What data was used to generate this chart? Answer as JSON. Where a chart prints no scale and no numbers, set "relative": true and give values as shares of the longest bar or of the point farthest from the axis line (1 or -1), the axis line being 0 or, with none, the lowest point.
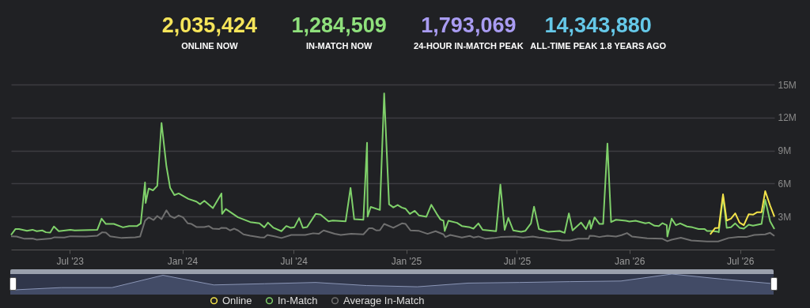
{
  "chart_data": [
    {
      "type": "other",
      "categories": [
        "ONLINE NOW",
        "IN-MATCH NOW",
        "24-HOUR IN-MATCH PEAK",
        "ALL-TIME PEAK 1.8 YEARS AGO"
      ],
      "values": [
        2035424,
        1284509,
        1793069,
        14343880
      ],
      "value_labels": [
        "2,035,424",
        "1,284,509",
        "1,793,069",
        "14,343,880"
      ],
      "colors": [
        "#f6e55a",
        "#8fe07c",
        "#a99cf2",
        "#65c8e8"
      ]
    },
    {
      "type": "line",
      "xlim": [
        "2023-03-27",
        "2026-08-26"
      ],
      "xticks": [
        {
          "value": "2023-07-01",
          "label": "Jul '23"
        },
        {
          "value": "2024-01-01",
          "label": "Jan '24"
        },
        {
          "value": "2024-07-01",
          "label": "Jul '24"
        },
        {
          "value": "2025-01-01",
          "label": "Jan '25"
        },
        {
          "value": "2025-07-01",
          "label": "Jul '25"
        },
        {
          "value": "2026-01-01",
          "label": "Jan '26"
        },
        {
          "value": "2026-07-01",
          "label": "Jul '26"
        }
      ],
      "ylim": [
        0,
        15000000
      ],
      "yticks": [
        {
          "value": 3000000,
          "label": "3M"
        },
        {
          "value": 6000000,
          "label": "6M"
        },
        {
          "value": 9000000,
          "label": "9M"
        },
        {
          "value": 12000000,
          "label": "12M"
        },
        {
          "value": 15000000,
          "label": "15M"
        }
      ],
      "grid": "y",
      "legend": "bottom",
      "series": [
        {
          "name": "Online",
          "color": "#f3e34a",
          "x": [
            "2026-05-13",
            "2026-05-21",
            "2026-05-27",
            "2026-06-03",
            "2026-06-09",
            "2026-06-16",
            "2026-06-23",
            "2026-06-30",
            "2026-07-07",
            "2026-07-15",
            "2026-07-22",
            "2026-07-29",
            "2026-08-05",
            "2026-08-11",
            "2026-08-19",
            "2026-08-26"
          ],
          "values": [
            1380000,
            1950000,
            1980000,
            5020000,
            2640000,
            2810000,
            3290000,
            2450000,
            2210000,
            3210000,
            3170000,
            3400000,
            3400000,
            5310000,
            4000000,
            2980000
          ]
        },
        {
          "name": "In-Match",
          "color": "#7fd06a",
          "x": [
            "2023-03-27",
            "2023-04-03",
            "2023-04-09",
            "2023-04-22",
            "2023-05-01",
            "2023-05-08",
            "2023-05-17",
            "2023-05-23",
            "2023-05-30",
            "2023-06-05",
            "2023-06-13",
            "2023-07-02",
            "2023-07-09",
            "2023-08-15",
            "2023-08-22",
            "2023-08-29",
            "2023-09-11",
            "2023-09-26",
            "2023-10-06",
            "2023-10-19",
            "2023-10-25",
            "2023-11-01",
            "2023-11-02",
            "2023-11-07",
            "2023-11-14",
            "2023-11-21",
            "2023-11-28",
            "2023-12-06",
            "2023-12-12",
            "2023-12-19",
            "2023-12-26",
            "2024-01-11",
            "2024-01-24",
            "2024-01-30",
            "2024-02-06",
            "2024-02-20",
            "2024-03-05",
            "2024-03-06",
            "2024-03-12",
            "2024-04-01",
            "2024-04-21",
            "2024-05-06",
            "2024-05-14",
            "2024-05-20",
            "2024-05-29",
            "2024-06-11",
            "2024-06-19",
            "2024-06-26",
            "2024-07-02",
            "2024-07-10",
            "2024-07-16",
            "2024-07-23",
            "2024-08-06",
            "2024-08-14",
            "2024-08-27",
            "2024-09-03",
            "2024-09-24",
            "2024-10-02",
            "2024-10-08",
            "2024-10-23",
            "2024-10-29",
            "2024-10-30",
            "2024-11-04",
            "2024-11-19",
            "2024-11-26",
            "2024-12-04",
            "2024-12-11",
            "2024-12-18",
            "2024-12-25",
            "2024-12-31",
            "2025-01-07",
            "2025-01-15",
            "2025-01-22",
            "2025-02-03",
            "2025-02-11",
            "2025-02-20",
            "2025-02-26",
            "2025-03-03",
            "2025-03-05",
            "2025-03-11",
            "2025-03-25",
            "2025-04-02",
            "2025-04-15",
            "2025-04-21",
            "2025-04-29",
            "2025-05-06",
            "2025-05-28",
            "2025-06-04",
            "2025-06-11",
            "2025-06-17",
            "2025-06-25",
            "2025-07-08",
            "2025-07-15",
            "2025-07-24",
            "2025-07-29",
            "2025-08-06",
            "2025-08-21",
            "2025-09-09",
            "2025-09-17",
            "2025-09-24",
            "2025-09-30",
            "2025-10-14",
            "2025-10-22",
            "2025-10-28",
            "2025-10-30",
            "2025-11-05",
            "2025-11-13",
            "2025-11-19",
            "2025-11-26",
            "2025-12-02",
            "2025-12-10",
            "2025-12-26",
            "2026-01-01",
            "2026-01-11",
            "2026-01-27",
            "2026-02-02",
            "2026-02-11",
            "2026-02-18",
            "2026-02-24",
            "2026-03-03",
            "2026-03-04",
            "2026-03-11",
            "2026-03-18",
            "2026-03-25",
            "2026-04-05",
            "2026-04-14",
            "2026-04-24",
            "2026-05-04",
            "2026-05-08",
            "2026-05-17",
            "2026-05-26",
            "2026-05-27",
            "2026-06-03",
            "2026-06-09",
            "2026-06-16",
            "2026-06-23",
            "2026-06-30",
            "2026-07-07",
            "2026-07-15",
            "2026-07-22",
            "2026-08-05",
            "2026-08-11",
            "2026-08-19",
            "2026-08-26"
          ],
          "values": [
            1330000,
            1860000,
            1860000,
            1710000,
            1800000,
            1670000,
            1740000,
            1570000,
            1550000,
            2100000,
            1670000,
            1800000,
            1740000,
            1800000,
            2810000,
            2330000,
            2330000,
            2020000,
            2140000,
            2140000,
            2380000,
            6100000,
            4240000,
            5550000,
            5380000,
            5790000,
            11500000,
            7570000,
            5620000,
            4950000,
            5100000,
            4600000,
            4360000,
            4120000,
            4430000,
            3760000,
            5100000,
            3240000,
            3690000,
            2930000,
            2500000,
            2380000,
            2020000,
            2450000,
            1980000,
            1670000,
            2140000,
            1980000,
            2020000,
            2860000,
            1980000,
            2050000,
            3240000,
            3170000,
            2570000,
            2640000,
            2570000,
            5600000,
            2760000,
            2710000,
            9710000,
            3000000,
            3880000,
            3600000,
            14190000,
            4120000,
            3830000,
            4050000,
            3810000,
            3710000,
            3240000,
            3520000,
            3100000,
            2980000,
            4070000,
            3240000,
            2740000,
            2620000,
            1690000,
            2620000,
            2430000,
            2140000,
            2020000,
            1900000,
            2380000,
            1790000,
            1670000,
            5900000,
            1790000,
            2880000,
            1740000,
            1620000,
            1710000,
            2380000,
            3900000,
            1860000,
            1620000,
            1690000,
            1520000,
            3290000,
            1740000,
            2450000,
            1860000,
            2640000,
            1900000,
            2930000,
            2330000,
            2330000,
            9640000,
            2500000,
            2710000,
            2620000,
            2550000,
            2620000,
            2380000,
            2450000,
            2170000,
            2140000,
            2400000,
            2210000,
            1190000,
            2810000,
            2210000,
            2380000,
            2100000,
            2020000,
            1860000,
            1860000,
            1690000,
            1690000,
            1620000,
            1570000,
            4830000,
            1980000,
            2020000,
            2380000,
            1980000,
            1900000,
            2260000,
            2170000,
            2330000,
            4520000,
            2570000,
            1860000
          ]
        },
        {
          "name": "Average In-Match",
          "color": "#6f6f6f",
          "x": [
            "2023-03-27",
            "2023-04-05",
            "2023-04-18",
            "2023-05-01",
            "2023-05-08",
            "2023-05-31",
            "2023-06-06",
            "2023-06-22",
            "2023-07-02",
            "2023-07-27",
            "2023-08-15",
            "2023-08-23",
            "2023-08-29",
            "2023-09-05",
            "2023-09-24",
            "2023-10-16",
            "2023-10-24",
            "2023-11-01",
            "2023-11-07",
            "2023-11-15",
            "2023-11-21",
            "2023-11-28",
            "2023-12-06",
            "2023-12-12",
            "2023-12-19",
            "2023-12-26",
            "2024-01-02",
            "2024-01-10",
            "2024-01-16",
            "2024-01-24",
            "2024-02-06",
            "2024-02-13",
            "2024-02-20",
            "2024-03-01",
            "2024-03-05",
            "2024-03-13",
            "2024-03-19",
            "2024-03-26",
            "2024-04-01",
            "2024-04-10",
            "2024-04-21",
            "2024-05-07",
            "2024-05-14",
            "2024-05-19",
            "2024-06-01",
            "2024-06-11",
            "2024-06-27",
            "2024-07-20",
            "2024-08-02",
            "2024-08-11",
            "2024-08-19",
            "2024-09-06",
            "2024-09-16",
            "2024-10-03",
            "2024-10-23",
            "2024-11-01",
            "2024-11-07",
            "2024-11-13",
            "2024-11-19",
            "2024-11-26",
            "2024-12-11",
            "2024-12-25",
            "2024-12-31",
            "2025-01-08",
            "2025-01-21",
            "2025-02-05",
            "2025-02-18",
            "2025-03-03",
            "2025-03-06",
            "2025-03-14",
            "2025-04-02",
            "2025-04-15",
            "2025-04-21",
            "2025-04-29",
            "2025-05-11",
            "2025-05-24",
            "2025-06-04",
            "2025-06-28",
            "2025-07-11",
            "2025-07-27",
            "2025-08-06",
            "2025-08-22",
            "2025-09-13",
            "2025-09-26",
            "2025-10-09",
            "2025-10-26",
            "2025-10-28",
            "2025-11-04",
            "2025-11-13",
            "2025-11-26",
            "2025-12-10",
            "2025-12-19",
            "2025-12-28",
            "2026-01-05",
            "2026-01-30",
            "2026-02-24",
            "2026-03-04",
            "2026-03-11",
            "2026-03-26",
            "2026-04-12",
            "2026-05-08",
            "2026-05-26",
            "2026-06-12",
            "2026-06-28",
            "2026-07-11",
            "2026-07-24",
            "2026-08-11",
            "2026-08-19",
            "2026-08-26"
          ],
          "values": [
            1210000,
            1190000,
            980000,
            1000000,
            900000,
            1000000,
            1120000,
            1100000,
            1210000,
            1190000,
            1260000,
            1570000,
            1550000,
            1210000,
            1050000,
            1120000,
            1190000,
            2620000,
            2930000,
            2690000,
            3050000,
            2760000,
            3570000,
            3050000,
            2860000,
            3100000,
            2930000,
            2380000,
            2330000,
            2050000,
            2050000,
            2140000,
            1900000,
            1860000,
            1980000,
            1950000,
            1740000,
            1900000,
            1740000,
            1380000,
            1260000,
            1120000,
            1100000,
            1330000,
            1190000,
            1050000,
            1330000,
            1330000,
            1480000,
            1430000,
            1740000,
            1430000,
            1330000,
            1430000,
            1380000,
            1930000,
            1930000,
            1740000,
            1760000,
            2330000,
            1980000,
            2380000,
            2330000,
            1740000,
            1710000,
            1430000,
            1670000,
            1380000,
            1140000,
            1330000,
            1100000,
            1240000,
            1100000,
            1190000,
            980000,
            1050000,
            1140000,
            1190000,
            1100000,
            1190000,
            1100000,
            1020000,
            830000,
            830000,
            980000,
            980000,
            1260000,
            1240000,
            1140000,
            1260000,
            1190000,
            1310000,
            1500000,
            1190000,
            1020000,
            980000,
            760000,
            900000,
            1070000,
            830000,
            740000,
            740000,
            1050000,
            1140000,
            1140000,
            1330000,
            1380000,
            1520000,
            1240000
          ]
        }
      ]
    },
    {
      "type": "area",
      "relative": true,
      "color": "#4a5472",
      "categories": [
        null,
        null,
        null,
        null,
        null,
        null,
        null,
        null,
        null,
        null,
        null,
        null,
        null,
        null,
        null,
        null
      ],
      "values": [
        0.22,
        0.34,
        0.34,
        0.94,
        0.47,
        0.53,
        0.59,
        0.44,
        0.38,
        0.56,
        0.59,
        0.63,
        0.66,
        1,
        0.75,
        0.53
      ]
    }
  ]
}
